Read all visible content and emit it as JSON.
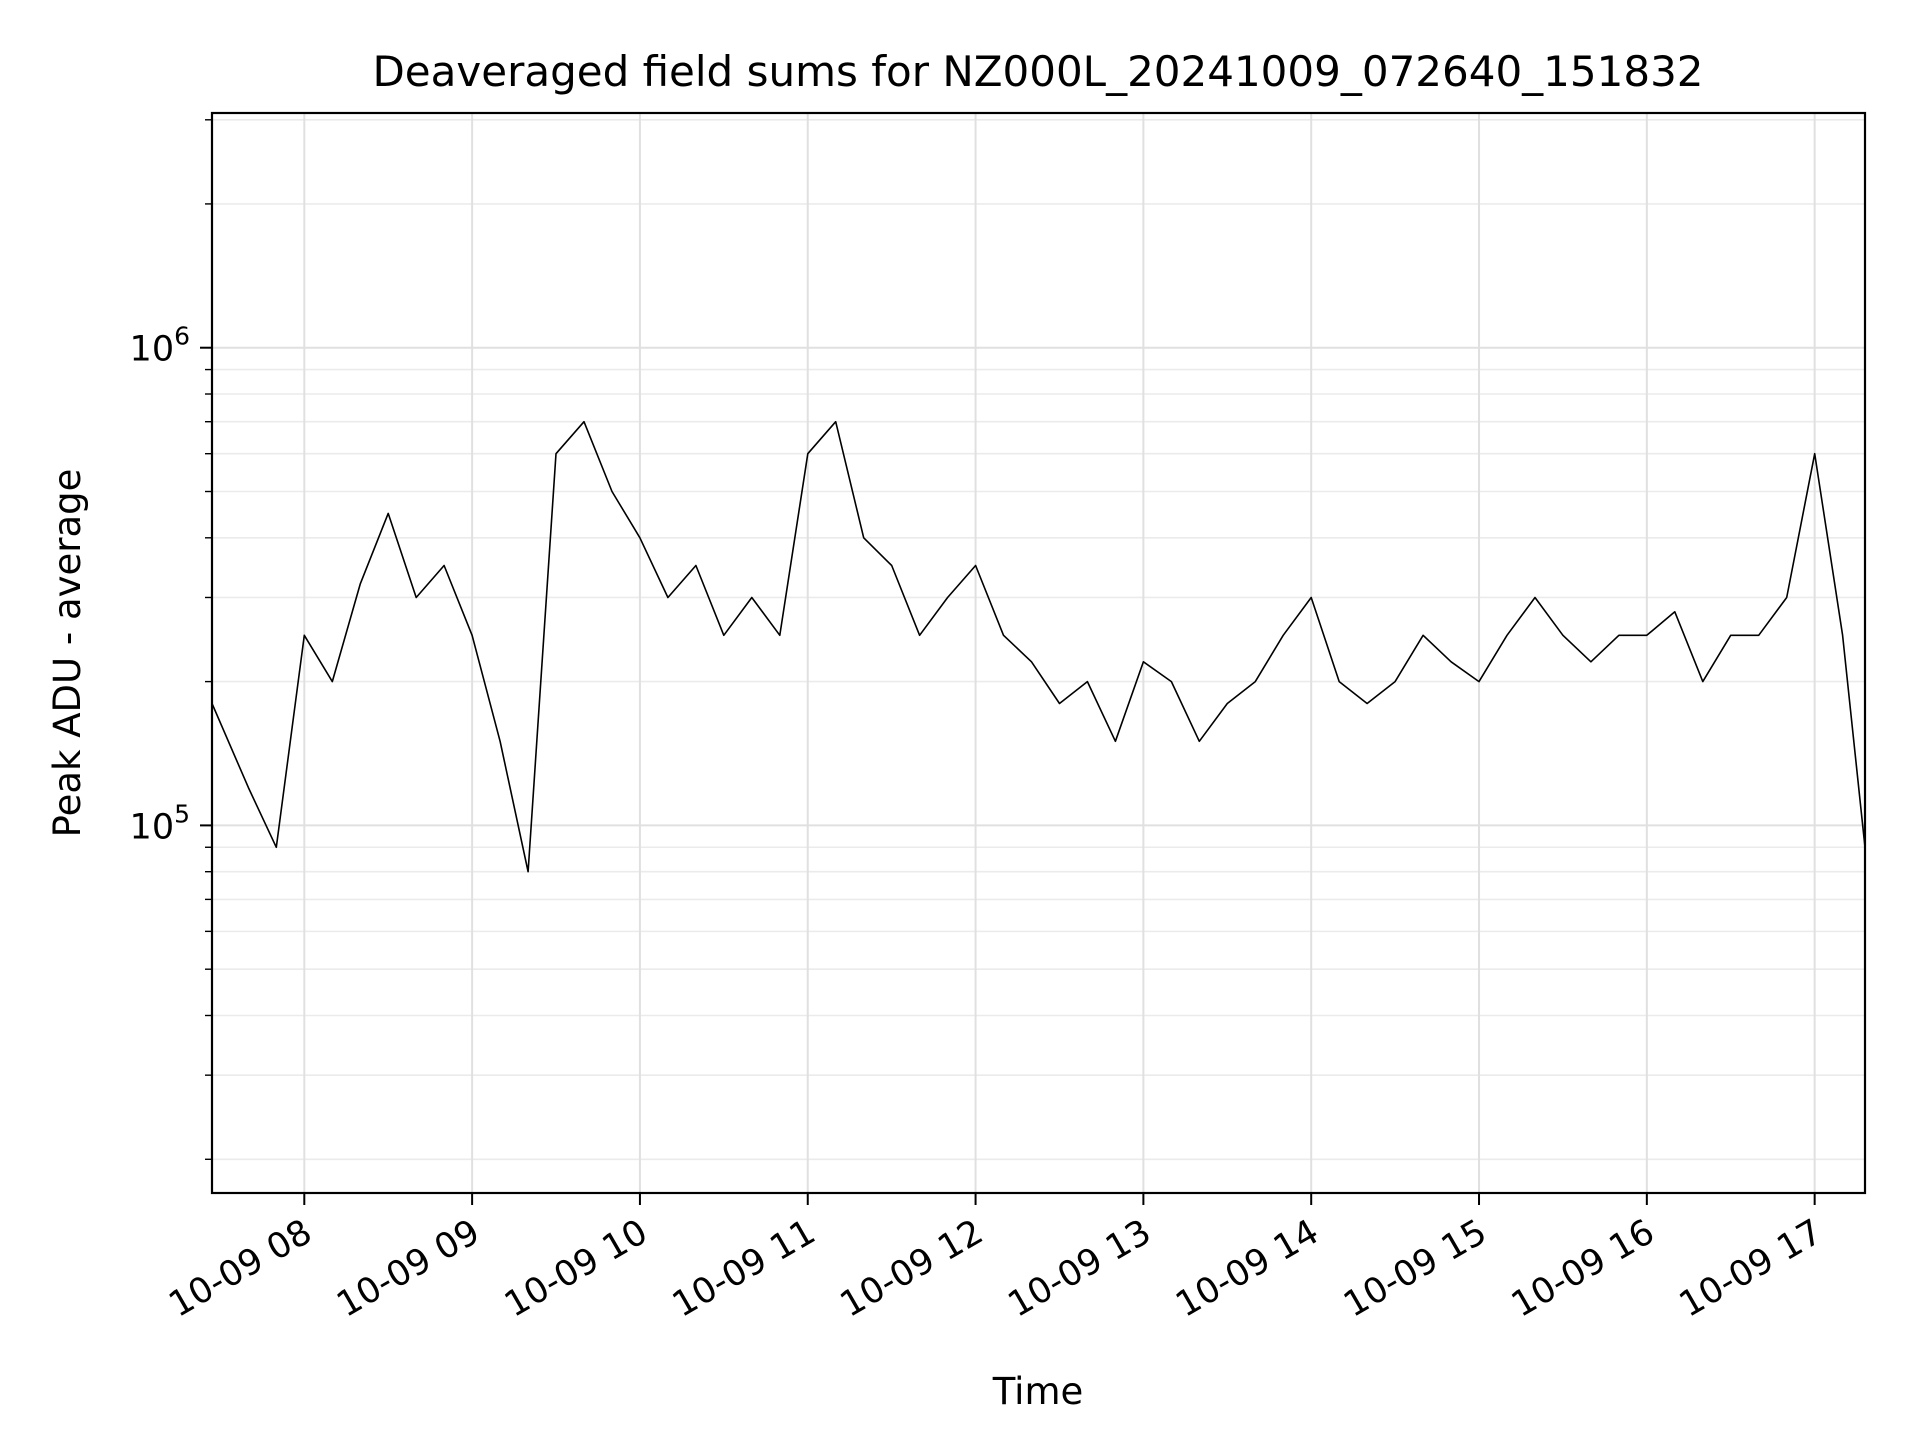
{
  "chart_data": {
    "type": "line",
    "title": "Deaveraged field sums for NZ000L_20241009_072640_151832",
    "xlabel": "Time",
    "ylabel": "Peak ADU - average",
    "y_scale": "log",
    "ylim": [
      17000,
      3100000
    ],
    "xlim": [
      "10-09 07:27",
      "10-09 17:18"
    ],
    "x_ticks": [
      "10-09 08",
      "10-09 09",
      "10-09 10",
      "10-09 11",
      "10-09 12",
      "10-09 13",
      "10-09 14",
      "10-09 15",
      "10-09 16",
      "10-09 17"
    ],
    "y_ticks": [
      {
        "label": "10",
        "exponent": "5",
        "value": 100000
      },
      {
        "label": "10",
        "exponent": "6",
        "value": 1000000
      }
    ],
    "grid": true,
    "line_color": "#000000",
    "series": [
      {
        "x": [
          "10-09 07:27",
          "10-09 07:40",
          "10-09 07:50",
          "10-09 08:00",
          "10-09 08:10",
          "10-09 08:20",
          "10-09 08:30",
          "10-09 08:40",
          "10-09 08:50",
          "10-09 09:00",
          "10-09 09:10",
          "10-09 09:20",
          "10-09 09:30",
          "10-09 09:40",
          "10-09 09:50",
          "10-09 10:00",
          "10-09 10:10",
          "10-09 10:20",
          "10-09 10:30",
          "10-09 10:40",
          "10-09 10:50",
          "10-09 11:00",
          "10-09 11:10",
          "10-09 11:20",
          "10-09 11:30",
          "10-09 11:40",
          "10-09 11:50",
          "10-09 12:00",
          "10-09 12:10",
          "10-09 12:20",
          "10-09 12:30",
          "10-09 12:40",
          "10-09 12:50",
          "10-09 13:00",
          "10-09 13:10",
          "10-09 13:20",
          "10-09 13:30",
          "10-09 13:40",
          "10-09 13:50",
          "10-09 14:00",
          "10-09 14:10",
          "10-09 14:20",
          "10-09 14:30",
          "10-09 14:40",
          "10-09 14:50",
          "10-09 15:00",
          "10-09 15:10",
          "10-09 15:20",
          "10-09 15:30",
          "10-09 15:40",
          "10-09 15:50",
          "10-09 16:00",
          "10-09 16:10",
          "10-09 16:20",
          "10-09 16:30",
          "10-09 16:40",
          "10-09 16:50",
          "10-09 17:00",
          "10-09 17:10",
          "10-09 17:18"
        ],
        "values": [
          180000,
          120000,
          90000,
          250000,
          200000,
          320000,
          450000,
          300000,
          350000,
          250000,
          150000,
          80000,
          600000,
          700000,
          500000,
          400000,
          300000,
          350000,
          250000,
          300000,
          250000,
          600000,
          700000,
          400000,
          350000,
          250000,
          300000,
          350000,
          250000,
          220000,
          180000,
          200000,
          150000,
          220000,
          200000,
          150000,
          180000,
          200000,
          250000,
          300000,
          200000,
          180000,
          200000,
          250000,
          220000,
          200000,
          250000,
          300000,
          250000,
          220000,
          250000,
          250000,
          280000,
          200000,
          250000,
          250000,
          300000,
          600000,
          250000,
          90000
        ]
      }
    ]
  }
}
